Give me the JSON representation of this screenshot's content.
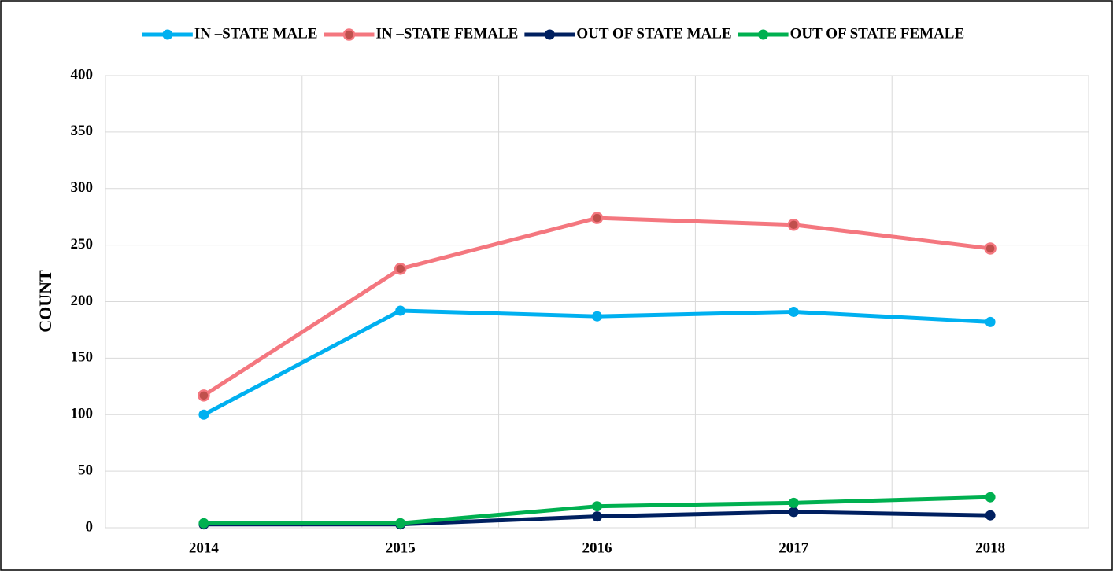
{
  "chart_data": {
    "type": "line",
    "categories": [
      "2014",
      "2015",
      "2016",
      "2017",
      "2018"
    ],
    "series": [
      {
        "name": "IN –STATE MALE",
        "color": "#00b0f0",
        "values": [
          100,
          192,
          187,
          191,
          182
        ]
      },
      {
        "name": "IN –STATE FEMALE",
        "color": "#f4777f",
        "values": [
          117,
          229,
          274,
          268,
          247
        ]
      },
      {
        "name": "OUT  OF STATE MALE",
        "color": "#002060",
        "values": [
          3,
          3,
          10,
          14,
          11
        ]
      },
      {
        "name": "OUT  OF STATE FEMALE",
        "color": "#00b050",
        "values": [
          4,
          4,
          19,
          22,
          27
        ]
      }
    ],
    "y_label": "COUNT",
    "ylim": [
      0,
      400
    ],
    "yticks": [
      0,
      50,
      100,
      150,
      200,
      250,
      300,
      350,
      400
    ],
    "grid": true,
    "legend": "top"
  }
}
